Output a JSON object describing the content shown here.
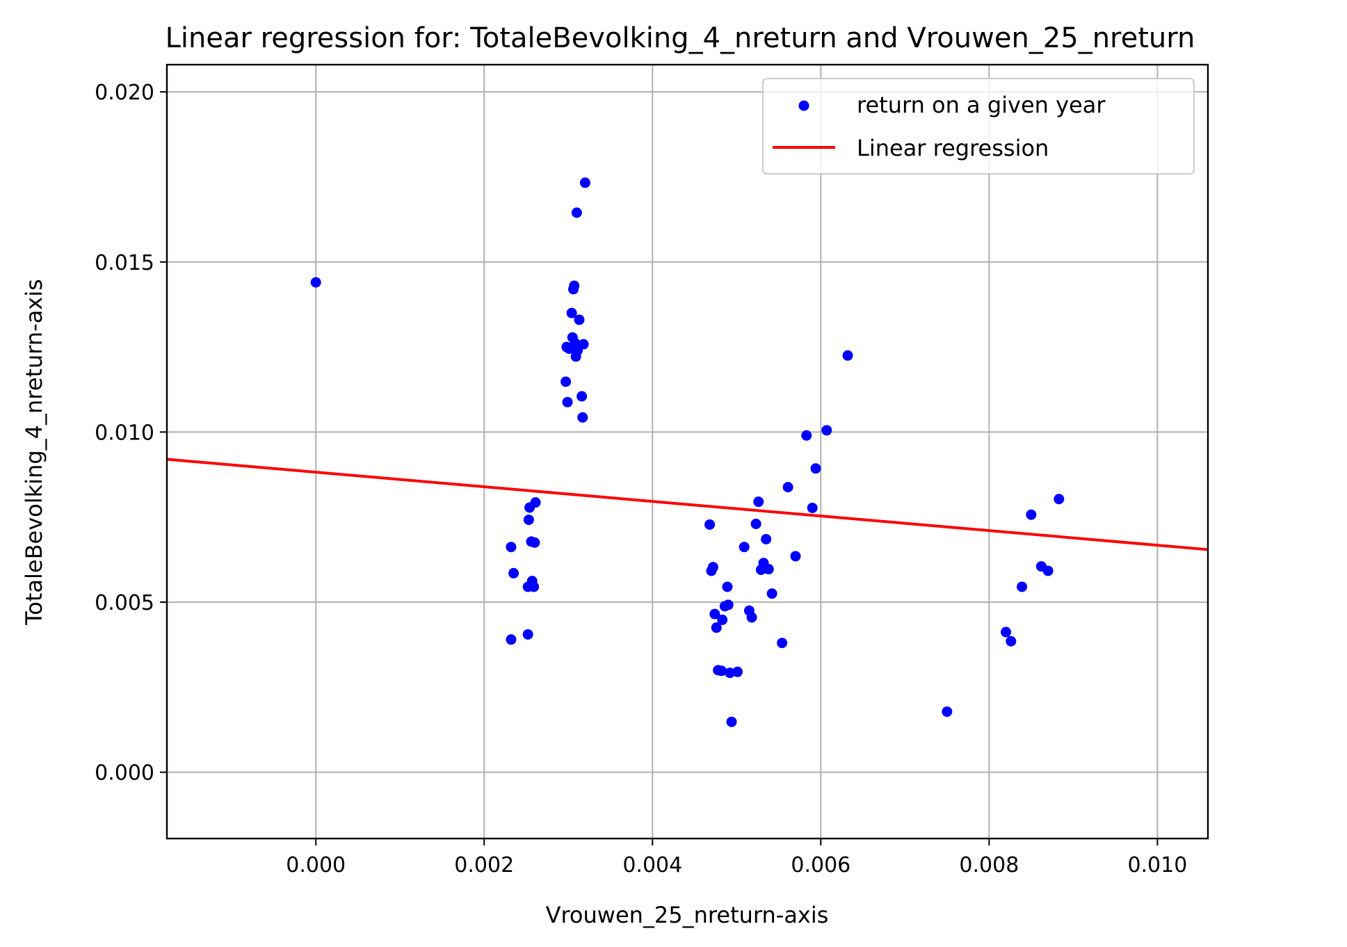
{
  "chart_data": {
    "type": "scatter",
    "title": "Linear regression for: TotaleBevolking_4_nreturn and Vrouwen_25_nreturn",
    "xlabel": "Vrouwen_25_nreturn-axis",
    "ylabel": "TotaleBevolking_4_nreturn-axis",
    "xlim": [
      -0.00177,
      0.0106
    ],
    "ylim": [
      -0.00195,
      0.0208
    ],
    "xticks": [
      "0.000",
      "0.002",
      "0.004",
      "0.006",
      "0.008",
      "0.010"
    ],
    "yticks": [
      "0.000",
      "0.005",
      "0.010",
      "0.015",
      "0.020"
    ],
    "grid": true,
    "legend_position": "top-right",
    "series": [
      {
        "name": "return on a given year",
        "kind": "scatter",
        "color": "#0000ff",
        "points": [
          [
            0.0,
            0.0144
          ],
          [
            0.00232,
            0.00662
          ],
          [
            0.00232,
            0.0039
          ],
          [
            0.00235,
            0.00585
          ],
          [
            0.00252,
            0.00405
          ],
          [
            0.00252,
            0.00545
          ],
          [
            0.00253,
            0.00742
          ],
          [
            0.00254,
            0.00778
          ],
          [
            0.00256,
            0.00678
          ],
          [
            0.00257,
            0.00562
          ],
          [
            0.00259,
            0.00545
          ],
          [
            0.0026,
            0.00675
          ],
          [
            0.00261,
            0.00793
          ],
          [
            0.00297,
            0.01148
          ],
          [
            0.00298,
            0.0125
          ],
          [
            0.00299,
            0.01088
          ],
          [
            0.00301,
            0.01245
          ],
          [
            0.00304,
            0.0135
          ],
          [
            0.00305,
            0.01278
          ],
          [
            0.00306,
            0.0142
          ],
          [
            0.00307,
            0.0143
          ],
          [
            0.00308,
            0.01262
          ],
          [
            0.00309,
            0.01222
          ],
          [
            0.0031,
            0.01645
          ],
          [
            0.00311,
            0.0124
          ],
          [
            0.00313,
            0.0133
          ],
          [
            0.00316,
            0.01105
          ],
          [
            0.00317,
            0.01043
          ],
          [
            0.00318,
            0.01258
          ],
          [
            0.0032,
            0.01733
          ],
          [
            0.00468,
            0.00728
          ],
          [
            0.0047,
            0.00592
          ],
          [
            0.00472,
            0.00603
          ],
          [
            0.00474,
            0.00465
          ],
          [
            0.00476,
            0.00425
          ],
          [
            0.00478,
            0.003
          ],
          [
            0.00482,
            0.00298
          ],
          [
            0.00483,
            0.00448
          ],
          [
            0.00486,
            0.00488
          ],
          [
            0.00489,
            0.00545
          ],
          [
            0.0049,
            0.00492
          ],
          [
            0.00492,
            0.00292
          ],
          [
            0.00494,
            0.00148
          ],
          [
            0.00501,
            0.00295
          ],
          [
            0.00509,
            0.00662
          ],
          [
            0.00515,
            0.00475
          ],
          [
            0.00518,
            0.00455
          ],
          [
            0.00523,
            0.0073
          ],
          [
            0.00526,
            0.00795
          ],
          [
            0.00529,
            0.00595
          ],
          [
            0.00532,
            0.00615
          ],
          [
            0.00535,
            0.00685
          ],
          [
            0.00538,
            0.00597
          ],
          [
            0.00542,
            0.00525
          ],
          [
            0.00554,
            0.0038
          ],
          [
            0.00561,
            0.00838
          ],
          [
            0.0057,
            0.00635
          ],
          [
            0.00583,
            0.0099
          ],
          [
            0.0059,
            0.00777
          ],
          [
            0.00594,
            0.00893
          ],
          [
            0.00607,
            0.01005
          ],
          [
            0.00632,
            0.01225
          ],
          [
            0.0075,
            0.00178
          ],
          [
            0.0082,
            0.00412
          ],
          [
            0.00826,
            0.00385
          ],
          [
            0.00839,
            0.00545
          ],
          [
            0.0085,
            0.00757
          ],
          [
            0.00862,
            0.00605
          ],
          [
            0.0087,
            0.00592
          ],
          [
            0.00883,
            0.00803
          ]
        ]
      },
      {
        "name": "Linear regression",
        "kind": "line",
        "color": "#ff0000",
        "intercept": 0.00882,
        "slope": -0.2147
      }
    ]
  }
}
